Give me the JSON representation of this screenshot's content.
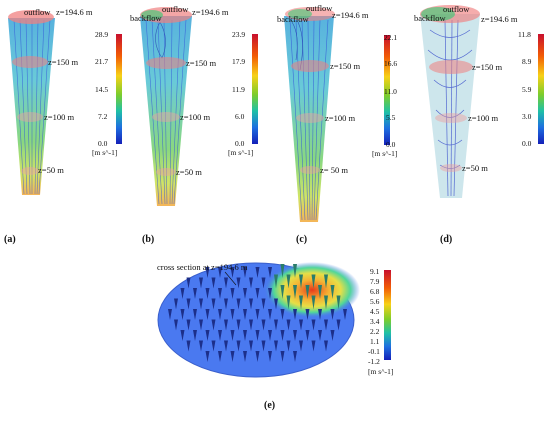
{
  "panels": [
    {
      "id": "a",
      "label": "(a)",
      "top_label": "outflow",
      "backflow_label": "",
      "heights": [
        "z=194.6 m",
        "z=150 m",
        "z=100 m",
        "z=50 m"
      ],
      "colorbar": {
        "max": "28.9",
        "ticks": [
          "28.9",
          "21.7",
          "14.5",
          "7.2",
          "0.0"
        ],
        "unit": "[m s^-1]"
      }
    },
    {
      "id": "b",
      "label": "(b)",
      "top_label": "outflow",
      "backflow_label": "backflow",
      "heights": [
        "z=194.6 m",
        "z=150 m",
        "z=100 m",
        "z=50 m"
      ],
      "colorbar": {
        "max": "23.9",
        "ticks": [
          "23.9",
          "17.9",
          "11.9",
          "6.0",
          "0.0"
        ],
        "unit": "[m s^-1]"
      }
    },
    {
      "id": "c",
      "label": "(c)",
      "top_label": "outflow",
      "backflow_label": "backflow",
      "heights": [
        "z=194.6 m",
        "z=150 m",
        "z=100 m",
        "z= 50 m"
      ],
      "colorbar": {
        "max": "22.1",
        "ticks": [
          "22.1",
          "16.6",
          "11.0",
          "5.5",
          "0.0"
        ],
        "unit": "[m s^-1]"
      }
    },
    {
      "id": "d",
      "label": "(d)",
      "top_label": "outflow",
      "backflow_label": "backflow",
      "heights": [
        "z=194.6 m",
        "z=150 m",
        "z=100 m",
        "z=50 m"
      ],
      "colorbar": {
        "max": "11.8",
        "ticks": [
          "11.8",
          "8.9",
          "5.9",
          "3.0",
          "0.0"
        ],
        "unit": "[m s^-1]"
      }
    }
  ],
  "panel_e": {
    "label": "(e)",
    "annotation": "cross section at z=194.6 m",
    "colorbar": {
      "ticks": [
        "9.1",
        "7.9",
        "6.8",
        "5.6",
        "4.5",
        "3.4",
        "2.2",
        "1.1",
        "-0.1",
        "-1.2"
      ],
      "unit": "[m s^-1]"
    }
  },
  "colors": {
    "rainbow": [
      "#c8102e",
      "#f25c05",
      "#f7d117",
      "#7ccd2c",
      "#1fc1a6",
      "#1e6fe0",
      "#1420b8"
    ],
    "outflow_ring": "#f08080",
    "backflow_ring": "#2ecc71",
    "plane_blue": "#4a79f0"
  }
}
